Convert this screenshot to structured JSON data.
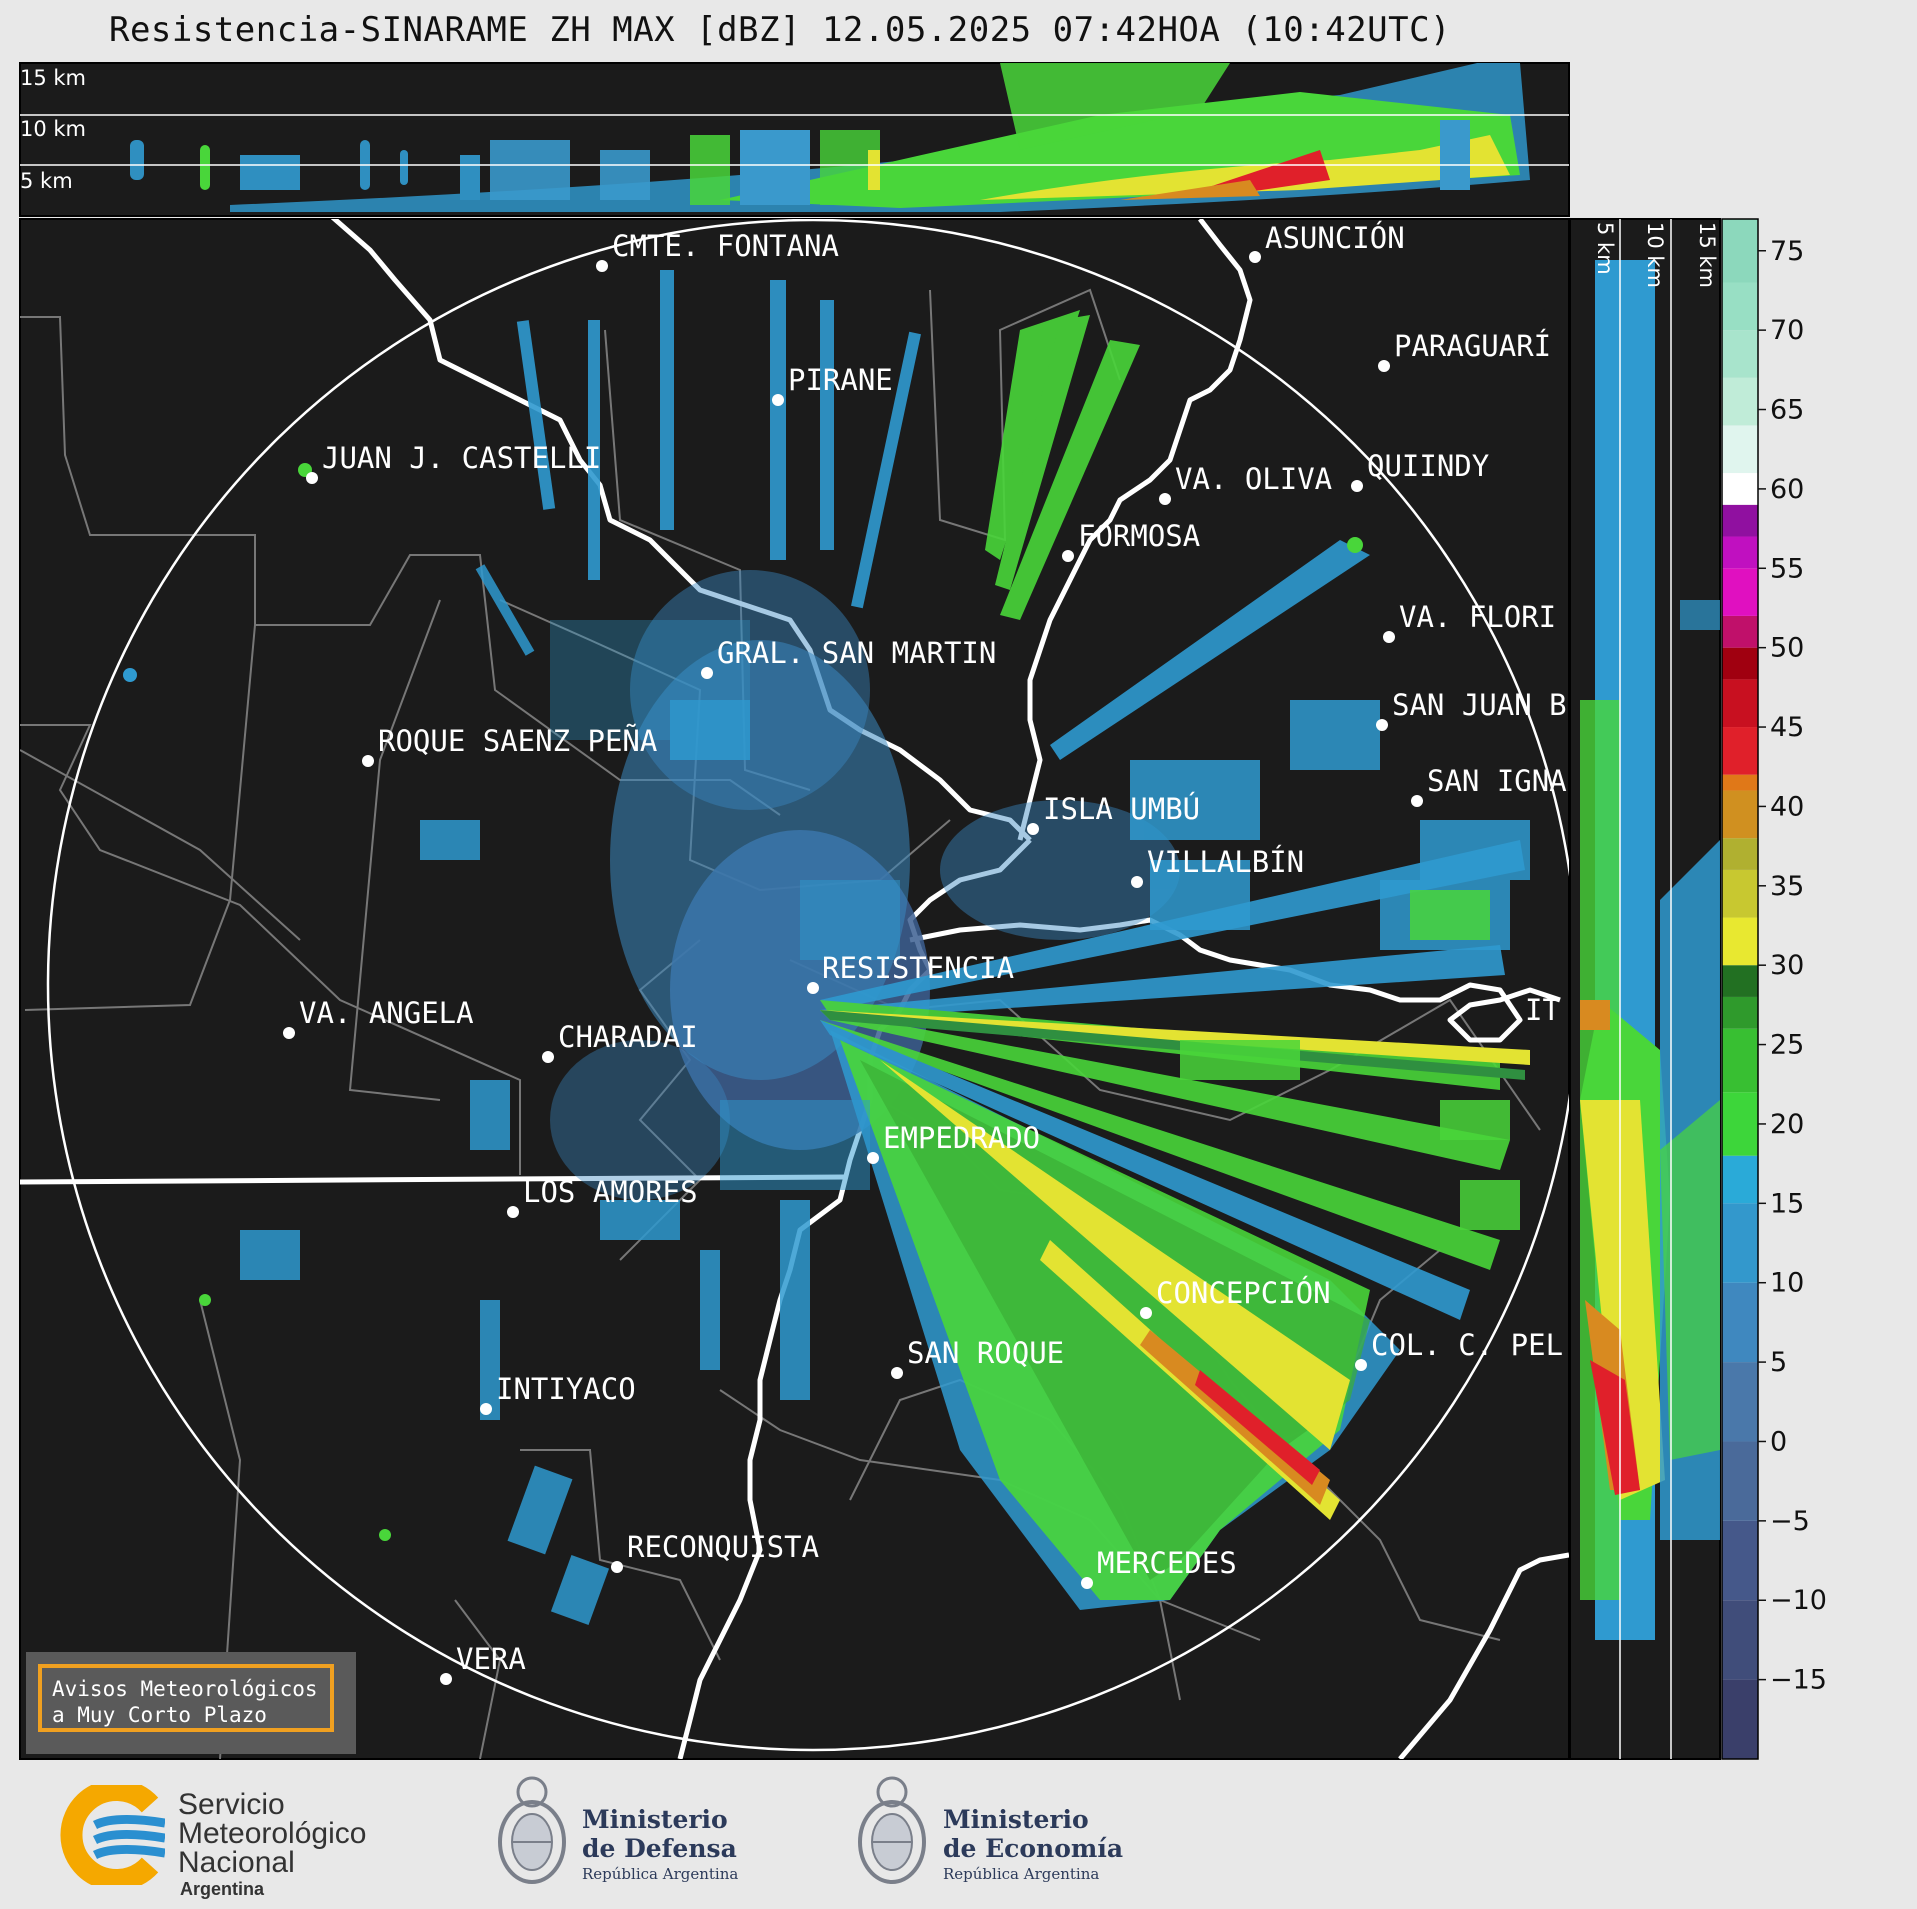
{
  "title": "Resistencia-SINARAME ZH MAX [dBZ] 12.05.2025 07:42HOA (10:42UTC)",
  "top_panel_labels": [
    "15 km",
    "10 km",
    "5 km"
  ],
  "side_panel_labels": [
    "5 km",
    "10 km",
    "15 km"
  ],
  "cities": [
    {
      "name": "CMTE. FONTANA"
    },
    {
      "name": "ASUNCIÓN"
    },
    {
      "name": "PARAGUARÍ"
    },
    {
      "name": "PIRANE"
    },
    {
      "name": "JUAN J. CASTELLI"
    },
    {
      "name": "VA. OLIVA"
    },
    {
      "name": "QUIINDY"
    },
    {
      "name": "FORMOSA"
    },
    {
      "name": "VA. FLORI"
    },
    {
      "name": "GRAL. SAN MARTIN"
    },
    {
      "name": "SAN JUAN B"
    },
    {
      "name": "ROQUE SAENZ PEÑA"
    },
    {
      "name": "SAN IGNA"
    },
    {
      "name": "ISLA UMBÚ"
    },
    {
      "name": "VILLALBÍN"
    },
    {
      "name": "RESISTENCIA"
    },
    {
      "name": "VA. ANGELA"
    },
    {
      "name": "CHARADAI"
    },
    {
      "name": "IT"
    },
    {
      "name": "EMPEDRADO"
    },
    {
      "name": "LOS AMORES"
    },
    {
      "name": "CONCEPCIÓN"
    },
    {
      "name": "COL. C. PEL"
    },
    {
      "name": "SAN ROQUE"
    },
    {
      "name": "INTIYACO"
    },
    {
      "name": "RECONQUISTA"
    },
    {
      "name": "MERCEDES"
    },
    {
      "name": "VERA"
    }
  ],
  "colorbar": {
    "unit": "dBZ",
    "ticks": [
      "75",
      "70",
      "65",
      "60",
      "55",
      "50",
      "45",
      "40",
      "35",
      "30",
      "25",
      "20",
      "15",
      "10",
      "5",
      "0",
      "−5",
      "−10",
      "−15"
    ],
    "range": [
      -20,
      77
    ]
  },
  "warning_box": {
    "line1": "Avisos Meteorológicos",
    "line2": "a Muy Corto Plazo"
  },
  "footer": {
    "smn_line1": "Servicio",
    "smn_line2": "Meteorológico",
    "smn_line3": "Nacional",
    "smn_country": "Argentina",
    "defensa_line1": "Ministerio",
    "defensa_line2": "de Defensa",
    "defensa_sub": "República Argentina",
    "economia_line1": "Ministerio",
    "economia_line2": "de Economía",
    "economia_sub": "República Argentina"
  },
  "colors": {
    "map_background": "#1b1b1b",
    "page_background": "#e8e8e8",
    "warning_border": "#f0a020",
    "smn_orange": "#f5a800",
    "smn_blue": "#2a8fd0"
  }
}
